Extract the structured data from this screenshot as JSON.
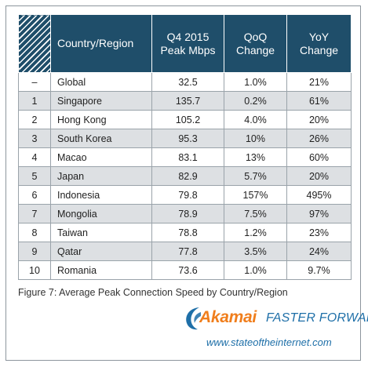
{
  "table": {
    "headers": {
      "country": "Country/Region",
      "speed": [
        "Q4 2015",
        "Peak Mbps"
      ],
      "qoq": [
        "QoQ",
        "Change"
      ],
      "yoy": [
        "YoY",
        "Change"
      ]
    },
    "rows": [
      {
        "rank": "–",
        "country": "Global",
        "speed": "32.5",
        "qoq": "1.0%",
        "yoy": "21%"
      },
      {
        "rank": "1",
        "country": "Singapore",
        "speed": "135.7",
        "qoq": "0.2%",
        "yoy": "61%"
      },
      {
        "rank": "2",
        "country": "Hong Kong",
        "speed": "105.2",
        "qoq": "4.0%",
        "yoy": "20%"
      },
      {
        "rank": "3",
        "country": "South Korea",
        "speed": "95.3",
        "qoq": "10%",
        "yoy": "26%"
      },
      {
        "rank": "4",
        "country": "Macao",
        "speed": "83.1",
        "qoq": "13%",
        "yoy": "60%"
      },
      {
        "rank": "5",
        "country": "Japan",
        "speed": "82.9",
        "qoq": "5.7%",
        "yoy": "20%"
      },
      {
        "rank": "6",
        "country": "Indonesia",
        "speed": "79.8",
        "qoq": "157%",
        "yoy": "495%"
      },
      {
        "rank": "7",
        "country": "Mongolia",
        "speed": "78.9",
        "qoq": "7.5%",
        "yoy": "97%"
      },
      {
        "rank": "8",
        "country": "Taiwan",
        "speed": "78.8",
        "qoq": "1.2%",
        "yoy": "23%"
      },
      {
        "rank": "9",
        "country": "Qatar",
        "speed": "77.8",
        "qoq": "3.5%",
        "yoy": "24%"
      },
      {
        "rank": "10",
        "country": "Romania",
        "speed": "73.6",
        "qoq": "1.0%",
        "yoy": "9.7%"
      }
    ]
  },
  "caption": "Figure 7: Average Peak Connection Speed by Country/Region",
  "branding": {
    "logo_text": "Akamai",
    "tagline": "FASTER FORWARD",
    "url": "www.stateoftheinternet.com"
  },
  "colors": {
    "header_bg": "#1f4e6a",
    "stripe": "#dde0e3",
    "brand_orange": "#f07e1c",
    "brand_blue": "#1e6fa8"
  }
}
